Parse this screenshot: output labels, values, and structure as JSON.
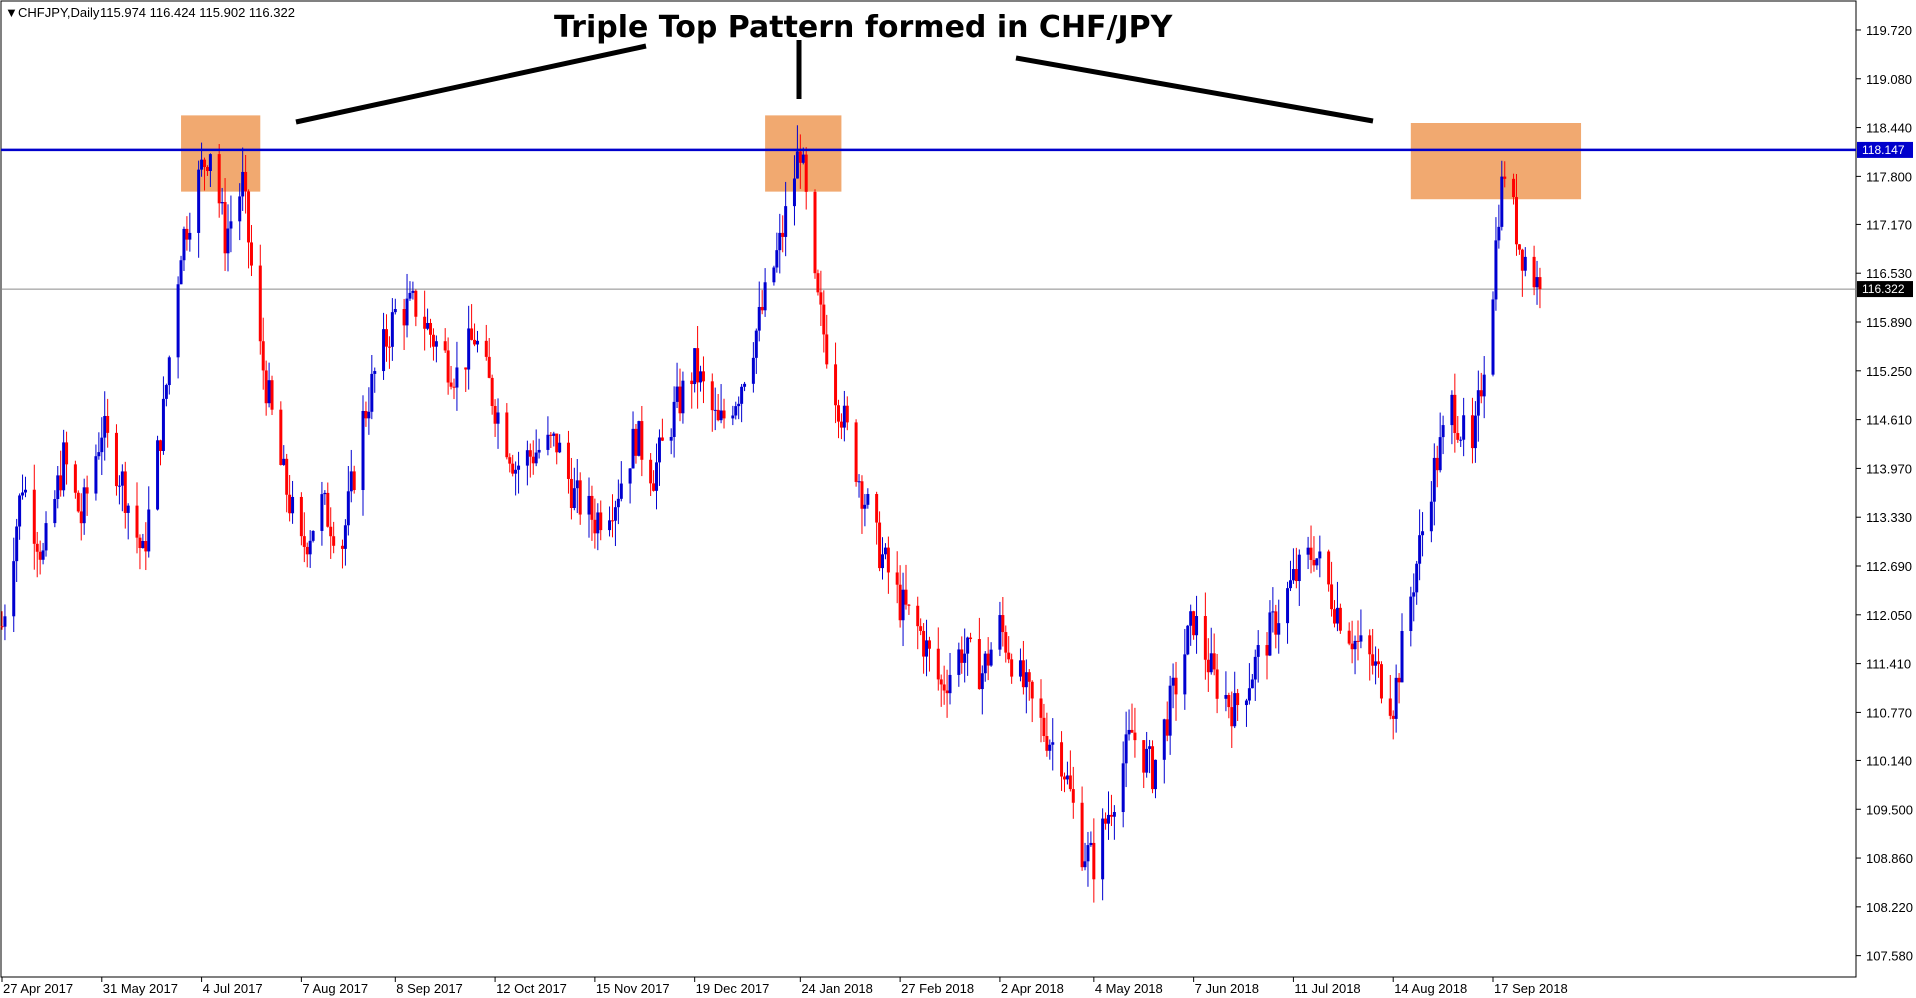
{
  "header": {
    "symbol_info": "CHFJPY,Daily",
    "ohlc": "115.974 116.424 115.902 116.322"
  },
  "annotation": {
    "title": "Triple Top Pattern formed in CHF/JPY"
  },
  "colors": {
    "bull": "#0000d0",
    "bear": "#ff0000",
    "resistance": "#0000cc",
    "zone": "#f0a060",
    "current_line": "#8a8a8a",
    "badge_bg": "#000000",
    "badge_text": "#ffffff"
  },
  "chart_data": {
    "type": "candlestick",
    "symbol": "CHFJPY",
    "timeframe": "Daily",
    "title": "Triple Top Pattern formed in CHF/JPY",
    "ylim": [
      107.3,
      120.1
    ],
    "y_ticks": [
      "119.720",
      "119.080",
      "118.440",
      "117.800",
      "117.170",
      "116.530",
      "115.890",
      "115.250",
      "114.610",
      "113.970",
      "113.330",
      "112.690",
      "112.050",
      "111.410",
      "110.770",
      "110.140",
      "109.500",
      "108.860",
      "108.220",
      "107.580"
    ],
    "x_ticks": [
      "27 Apr 2017",
      "31 May 2017",
      "4 Jul 2017",
      "7 Aug 2017",
      "8 Sep 2017",
      "12 Oct 2017",
      "15 Nov 2017",
      "19 Dec 2017",
      "24 Jan 2018",
      "27 Feb 2018",
      "2 Apr 2018",
      "4 May 2018",
      "7 Jun 2018",
      "11 Jul 2018",
      "14 Aug 2018",
      "17 Sep 2018"
    ],
    "horizontal_lines": [
      {
        "label": "118.147",
        "value": 118.147,
        "role": "resistance"
      },
      {
        "label": "116.322",
        "value": 116.322,
        "role": "current"
      }
    ],
    "price_path": [
      [
        "27 Apr 2017",
        111.9
      ],
      [
        "4 May 2017",
        113.8
      ],
      [
        "11 May 2017",
        112.8
      ],
      [
        "18 May 2017",
        114.1
      ],
      [
        "24 May 2017",
        113.3
      ],
      [
        "31 May 2017",
        114.5
      ],
      [
        "7 Jun 2017",
        113.8
      ],
      [
        "14 Jun 2017",
        112.8
      ],
      [
        "21 Jun 2017",
        114.7
      ],
      [
        "27 Jun 2017",
        116.9
      ],
      [
        "4 Jul 2017",
        117.9
      ],
      [
        "7 Jul 2017",
        118.2
      ],
      [
        "12 Jul 2017",
        117.0
      ],
      [
        "18 Jul 2017",
        117.7
      ],
      [
        "24 Jul 2017",
        115.5
      ],
      [
        "31 Jul 2017",
        114.0
      ],
      [
        "7 Aug 2017",
        112.9
      ],
      [
        "14 Aug 2017",
        113.5
      ],
      [
        "21 Aug 2017",
        113.0
      ],
      [
        "28 Aug 2017",
        114.6
      ],
      [
        "1 Sep 2017",
        115.2
      ],
      [
        "8 Sep 2017",
        116.0
      ],
      [
        "15 Sep 2017",
        116.1
      ],
      [
        "22 Sep 2017",
        115.6
      ],
      [
        "29 Sep 2017",
        115.2
      ],
      [
        "5 Oct 2017",
        115.7
      ],
      [
        "12 Oct 2017",
        114.8
      ],
      [
        "19 Oct 2017",
        114.0
      ],
      [
        "26 Oct 2017",
        114.2
      ],
      [
        "2 Nov 2017",
        114.3
      ],
      [
        "8 Nov 2017",
        113.6
      ],
      [
        "15 Nov 2017",
        113.3
      ],
      [
        "22 Nov 2017",
        113.6
      ],
      [
        "29 Nov 2017",
        114.4
      ],
      [
        "5 Dec 2017",
        113.9
      ],
      [
        "12 Dec 2017",
        114.7
      ],
      [
        "19 Dec 2017",
        115.3
      ],
      [
        "27 Dec 2017",
        114.5
      ],
      [
        "3 Jan 2018",
        115.0
      ],
      [
        "10 Jan 2018",
        115.9
      ],
      [
        "17 Jan 2018",
        116.9
      ],
      [
        "24 Jan 2018",
        118.2
      ],
      [
        "29 Jan 2018",
        116.3
      ],
      [
        "5 Feb 2018",
        115.0
      ],
      [
        "12 Feb 2018",
        114.0
      ],
      [
        "19 Feb 2018",
        113.0
      ],
      [
        "27 Feb 2018",
        112.2
      ],
      [
        "6 Mar 2018",
        111.8
      ],
      [
        "13 Mar 2018",
        111.1
      ],
      [
        "20 Mar 2018",
        111.6
      ],
      [
        "27 Mar 2018",
        111.3
      ],
      [
        "2 Apr 2018",
        111.9
      ],
      [
        "9 Apr 2018",
        111.2
      ],
      [
        "16 Apr 2018",
        110.6
      ],
      [
        "23 Apr 2018",
        110.2
      ],
      [
        "30 Apr 2018",
        109.0
      ],
      [
        "4 May 2018",
        108.8
      ],
      [
        "10 May 2018",
        109.6
      ],
      [
        "17 May 2018",
        110.5
      ],
      [
        "24 May 2018",
        110.0
      ],
      [
        "31 May 2018",
        111.0
      ],
      [
        "7 Jun 2018",
        112.0
      ],
      [
        "14 Jun 2018",
        111.2
      ],
      [
        "21 Jun 2018",
        110.8
      ],
      [
        "28 Jun 2018",
        111.4
      ],
      [
        "4 Jul 2018",
        111.9
      ],
      [
        "11 Jul 2018",
        112.5
      ],
      [
        "18 Jul 2018",
        112.9
      ],
      [
        "25 Jul 2018",
        112.2
      ],
      [
        "1 Aug 2018",
        111.7
      ],
      [
        "7 Aug 2018",
        111.4
      ],
      [
        "14 Aug 2018",
        110.9
      ],
      [
        "20 Aug 2018",
        112.3
      ],
      [
        "27 Aug 2018",
        113.8
      ],
      [
        "3 Sep 2018",
        114.8
      ],
      [
        "10 Sep 2018",
        114.1
      ],
      [
        "17 Sep 2018",
        116.4
      ],
      [
        "19 Sep 2018",
        117.4
      ],
      [
        "21 Sep 2018",
        117.9
      ],
      [
        "26 Sep 2018",
        116.9
      ],
      [
        "3 Oct 2018",
        116.32
      ]
    ],
    "highlight_zones": [
      {
        "from": "27 Jun 2017",
        "to": "24 Jul 2017",
        "low": 117.6,
        "high": 118.6
      },
      {
        "from": "12 Jan 2018",
        "to": "7 Feb 2018",
        "low": 117.6,
        "high": 118.6
      },
      {
        "from": "20 Aug 2018",
        "to": "17 Oct 2018",
        "low": 117.5,
        "high": 118.5
      }
    ]
  }
}
